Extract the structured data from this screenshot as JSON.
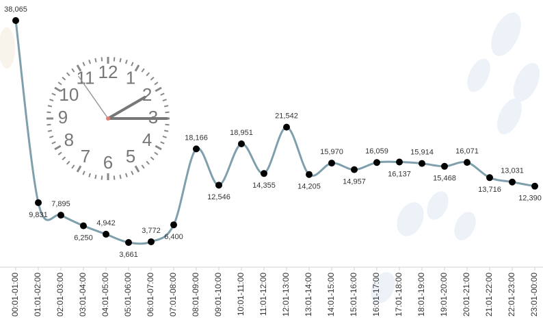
{
  "chart_data": {
    "type": "line",
    "categories": [
      "00:01-01:00",
      "01:01-02:00",
      "02:01-03:00",
      "03:01-04:00",
      "04:01-05:00",
      "05:01-06:00",
      "06:01-07:00",
      "07:01-08:00",
      "08:01-09:00",
      "09:01-10:00",
      "10:01-11:00",
      "11:01-12:00",
      "12:01-13:00",
      "13:01-14:00",
      "14:01-15:00",
      "15:01-16:00",
      "16:01-17:00",
      "17:01-18:00",
      "18:01-19:00",
      "19:01-20:00",
      "20:01-21:00",
      "21:01-22:00",
      "22:01-23:00",
      "23:01-00:00"
    ],
    "values": [
      38065,
      9831,
      7895,
      6250,
      4942,
      3661,
      3772,
      6400,
      18166,
      12546,
      18951,
      14355,
      21542,
      14205,
      15970,
      14957,
      16059,
      16137,
      15914,
      15468,
      16071,
      13716,
      13031,
      12390
    ],
    "value_labels": [
      "38,065",
      "9,831",
      "7,895",
      "6,250",
      "4,942",
      "3,661",
      "3,772",
      "6,400",
      "18,166",
      "12,546",
      "18,951",
      "14,355",
      "21,542",
      "14,205",
      "15,970",
      "14,957",
      "16,059",
      "16,137",
      "15,914",
      "15,468",
      "16,071",
      "13,716",
      "13,031",
      "12,390"
    ],
    "color": "#7f9fac",
    "marker_color": "#000000"
  },
  "clock": {
    "numerals": [
      "12",
      "1",
      "2",
      "3",
      "4",
      "5",
      "6",
      "7",
      "8",
      "9",
      "10",
      "11"
    ]
  }
}
